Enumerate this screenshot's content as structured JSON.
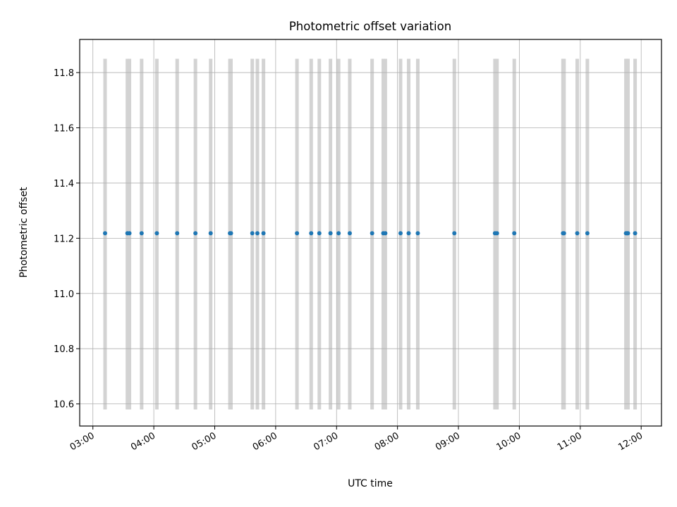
{
  "chart_data": {
    "type": "scatter",
    "title": "Photometric offset variation",
    "xlabel": "UTC time",
    "ylabel": "Photometric offset",
    "xlim": [
      "02:47",
      "12:20"
    ],
    "ylim": [
      10.52,
      11.92
    ],
    "x_ticks": [
      "03:00",
      "04:00",
      "05:00",
      "06:00",
      "07:00",
      "08:00",
      "09:00",
      "10:00",
      "11:00",
      "12:00"
    ],
    "y_ticks": [
      "10.6",
      "10.8",
      "11.0",
      "11.2",
      "11.4",
      "11.6",
      "11.8"
    ],
    "grid": true,
    "band_range": [
      10.58,
      11.85
    ],
    "band_color": "#d3d3d3",
    "point_color": "#1f77b4",
    "points": [
      {
        "x": "03:12",
        "y": 11.218
      },
      {
        "x": "03:34",
        "y": 11.218
      },
      {
        "x": "03:36",
        "y": 11.218
      },
      {
        "x": "03:48",
        "y": 11.218
      },
      {
        "x": "04:03",
        "y": 11.218
      },
      {
        "x": "04:23",
        "y": 11.218
      },
      {
        "x": "04:41",
        "y": 11.218
      },
      {
        "x": "04:56",
        "y": 11.218
      },
      {
        "x": "05:15",
        "y": 11.218
      },
      {
        "x": "05:16",
        "y": 11.218
      },
      {
        "x": "05:37",
        "y": 11.218
      },
      {
        "x": "05:42",
        "y": 11.218
      },
      {
        "x": "05:48",
        "y": 11.218
      },
      {
        "x": "06:21",
        "y": 11.218
      },
      {
        "x": "06:35",
        "y": 11.218
      },
      {
        "x": "06:43",
        "y": 11.218
      },
      {
        "x": "06:54",
        "y": 11.218
      },
      {
        "x": "07:02",
        "y": 11.218
      },
      {
        "x": "07:13",
        "y": 11.218
      },
      {
        "x": "07:35",
        "y": 11.218
      },
      {
        "x": "07:46",
        "y": 11.218
      },
      {
        "x": "07:48",
        "y": 11.218
      },
      {
        "x": "08:03",
        "y": 11.218
      },
      {
        "x": "08:11",
        "y": 11.218
      },
      {
        "x": "08:20",
        "y": 11.218
      },
      {
        "x": "08:56",
        "y": 11.218
      },
      {
        "x": "09:36",
        "y": 11.218
      },
      {
        "x": "09:38",
        "y": 11.218
      },
      {
        "x": "09:55",
        "y": 11.218
      },
      {
        "x": "10:43",
        "y": 11.218
      },
      {
        "x": "10:44",
        "y": 11.218
      },
      {
        "x": "10:57",
        "y": 11.218
      },
      {
        "x": "11:07",
        "y": 11.218
      },
      {
        "x": "11:45",
        "y": 11.218
      },
      {
        "x": "11:46",
        "y": 11.218
      },
      {
        "x": "11:47",
        "y": 11.218
      },
      {
        "x": "11:54",
        "y": 11.218
      }
    ]
  }
}
